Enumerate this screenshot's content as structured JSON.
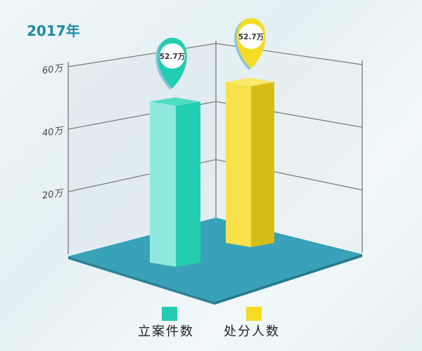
{
  "chart_data": {
    "type": "bar",
    "title": "2017年",
    "categories": [
      "立案件数",
      "处分人数"
    ],
    "values": [
      52.7,
      52.7
    ],
    "data_labels": [
      "52.7万",
      "52.7万"
    ],
    "ylim": [
      0,
      60
    ],
    "yticks": [
      20,
      40,
      60
    ],
    "ytick_labels": [
      "20万",
      "40万",
      "60万"
    ],
    "grid": true,
    "legend": "bottom",
    "style": "3d",
    "colors": {
      "series": [
        "#22cdb0",
        "#f5dc24"
      ],
      "floor": "#3aa2b8",
      "title": "#1e8aa0"
    }
  }
}
